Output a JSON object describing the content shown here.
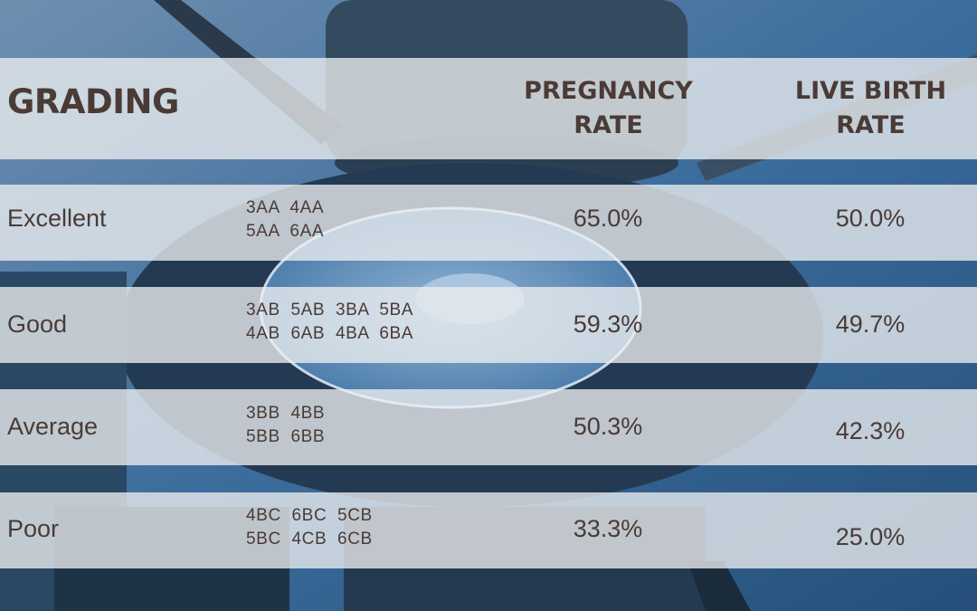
{
  "headers": {
    "grading": "GRADING",
    "pregnancy_line1": "PREGNANCY",
    "pregnancy_line2": "RATE",
    "live_line1": "LIVE BIRTH",
    "live_line2": "RATE"
  },
  "rows": [
    {
      "grade": "Excellent",
      "codes_line1": "3AA  4AA",
      "codes_line2": "5AA  6AA",
      "pregnancy": "65.0%",
      "live_birth": "50.0%"
    },
    {
      "grade": "Good",
      "codes_line1": "3AB  5AB  3BA  5BA",
      "codes_line2": "4AB  6AB  4BA  6BA",
      "pregnancy": "59.3%",
      "live_birth": "49.7%"
    },
    {
      "grade": "Average",
      "codes_line1": "3BB  4BB",
      "codes_line2": "5BB  6BB",
      "pregnancy": "50.3%",
      "live_birth": "42.3%"
    },
    {
      "grade": "Poor",
      "codes_line1": "4BC  6BC  5CB",
      "codes_line2": "5BC  4CB  6CB",
      "pregnancy": "33.3%",
      "live_birth": "25.0%"
    }
  ],
  "colors": {
    "text": "#4a3b36",
    "band": "#eceef0",
    "background_blue": "#2f5f8e"
  }
}
